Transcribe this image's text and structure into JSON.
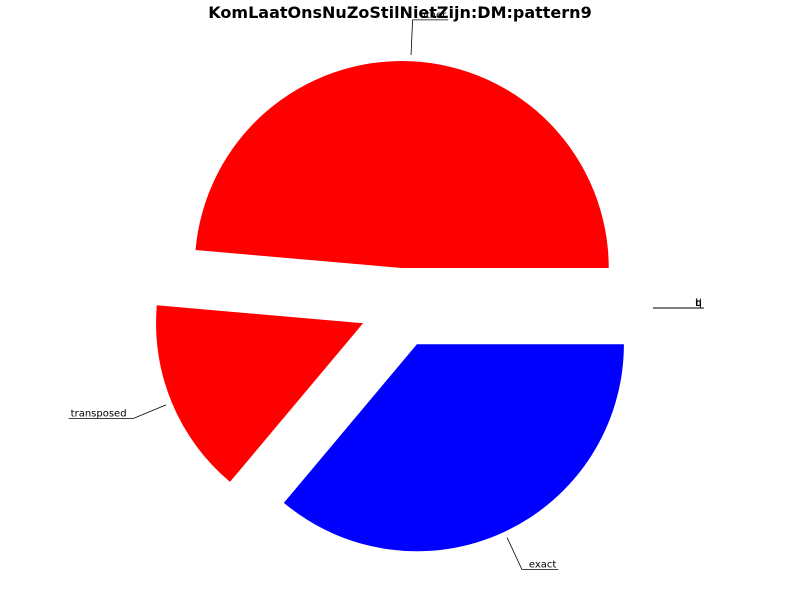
{
  "chart_data": {
    "type": "pie",
    "title": "KomLaatOnsNuZoStilNietZijn:DM:pattern9",
    "slices": [
      {
        "label": "other",
        "value": 175,
        "color": "#ff0000",
        "exploded": true
      },
      {
        "label": "transposed",
        "value": 55,
        "color": "#ff0000",
        "exploded": true
      },
      {
        "label": "exact",
        "value": 130,
        "color": "#0000ff",
        "exploded": true
      },
      {
        "label": "t",
        "value": 0,
        "color": "#ff0000",
        "exploded": true
      },
      {
        "label": "u",
        "value": 0,
        "color": "#ff0000",
        "exploded": true
      },
      {
        "label": "i",
        "value": 0,
        "color": "#ff0000",
        "exploded": true
      },
      {
        "label": "h",
        "value": 0,
        "color": "#ff0000",
        "exploded": true
      },
      {
        "label": "d",
        "value": 0,
        "color": "#ff0000",
        "exploded": true
      },
      {
        "label": "q",
        "value": 0,
        "color": "#ff0000",
        "exploded": true
      },
      {
        "label": "r",
        "value": 0,
        "color": "#ff0000",
        "exploded": true
      }
    ],
    "grid": false,
    "legend": "none"
  }
}
